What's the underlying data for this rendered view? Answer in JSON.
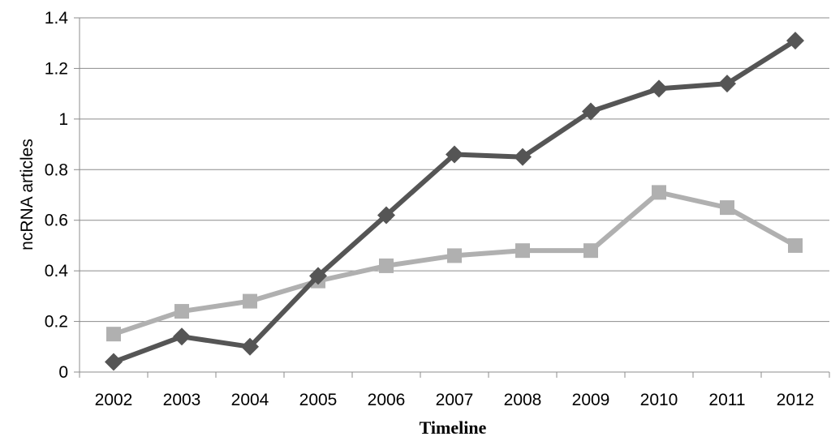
{
  "chart_data": {
    "type": "line",
    "title": "",
    "xlabel": "Timeline",
    "ylabel": "ncRNA articles",
    "ylim": [
      0,
      1.4
    ],
    "yticks": [
      "0",
      "0.2",
      "0.4",
      "0.6",
      "0.8",
      "1",
      "1.2",
      "1.4"
    ],
    "grid": "horizontal",
    "categories": [
      "2002",
      "2003",
      "2004",
      "2005",
      "2006",
      "2007",
      "2008",
      "2009",
      "2010",
      "2011",
      "2012"
    ],
    "series": [
      {
        "marker": "diamond",
        "color": "#555555",
        "values": [
          0.04,
          0.14,
          0.1,
          0.38,
          0.62,
          0.86,
          0.85,
          1.03,
          1.12,
          1.14,
          1.31
        ]
      },
      {
        "marker": "square",
        "color": "#b0b0b0",
        "values": [
          0.15,
          0.24,
          0.28,
          0.36,
          0.42,
          0.46,
          0.48,
          0.48,
          0.71,
          0.65,
          0.5
        ]
      }
    ]
  }
}
